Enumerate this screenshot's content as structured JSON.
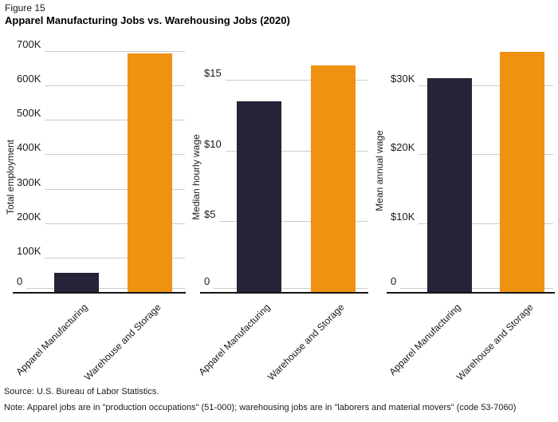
{
  "header": {
    "figure_label": "Figure 15",
    "title": "Apparel Manufacturing Jobs vs. Warehousing Jobs (2020)"
  },
  "footer": {
    "source": "Source: U.S. Bureau of Labor Statistics.",
    "note": "Note: Apparel jobs are in \"production occupations\" (51-000); warehousing jobs are in \"laborers and material movers\" (code 53-7060)"
  },
  "colors": {
    "apparel_bar": "#262338",
    "warehouse_bar": "#ef9211",
    "gridline": "#cccccc",
    "axis_line": "#141414",
    "text": "#1a1a1a"
  },
  "categories": [
    "Apparel Manufacturing",
    "Warehouse and Storage"
  ],
  "chart_data": [
    {
      "type": "bar",
      "title": "",
      "xlabel": "",
      "ylabel": "Total employment",
      "categories": [
        "Apparel Manufacturing",
        "Warehouse and Storage"
      ],
      "values": [
        55000,
        693000
      ],
      "yticks": [
        {
          "value": 0,
          "label": "0"
        },
        {
          "value": 100000,
          "label": "100K"
        },
        {
          "value": 200000,
          "label": "200K"
        },
        {
          "value": 300000,
          "label": "300K"
        },
        {
          "value": 400000,
          "label": "400K"
        },
        {
          "value": 500000,
          "label": "500K"
        },
        {
          "value": 600000,
          "label": "600K"
        },
        {
          "value": 700000,
          "label": "700K"
        }
      ],
      "ylim": [
        0,
        715000
      ],
      "grid": true,
      "legend": false
    },
    {
      "type": "bar",
      "title": "",
      "xlabel": "",
      "ylabel": "Median hourly wage",
      "categories": [
        "Apparel Manufacturing",
        "Warehouse and Storage"
      ],
      "values": [
        13.5,
        16.0
      ],
      "yticks": [
        {
          "value": 0,
          "label": "0"
        },
        {
          "value": 5,
          "label": "$5"
        },
        {
          "value": 10,
          "label": "$10"
        },
        {
          "value": 15,
          "label": "$15"
        }
      ],
      "ylim": [
        0,
        16.8
      ],
      "grid": true,
      "legend": false
    },
    {
      "type": "bar",
      "title": "",
      "xlabel": "",
      "ylabel": "Mean annual wage",
      "categories": [
        "Apparel Manufacturing",
        "Warehouse and Storage"
      ],
      "values": [
        31000,
        34800
      ],
      "yticks": [
        {
          "value": 0,
          "label": "0"
        },
        {
          "value": 10000,
          "label": "$10K"
        },
        {
          "value": 20000,
          "label": "$20K"
        },
        {
          "value": 30000,
          "label": "$30K"
        }
      ],
      "ylim": [
        0,
        36000
      ],
      "grid": true,
      "legend": false
    }
  ]
}
